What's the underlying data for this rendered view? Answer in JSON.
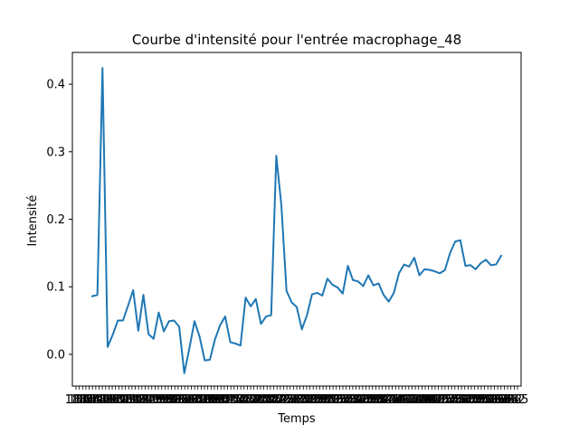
{
  "chart_data": {
    "type": "line",
    "title": "Courbe d'intensité pour l'entrée macrophage_48",
    "xlabel": "Temps",
    "ylabel": "Intensité",
    "ylim": [
      -0.047,
      0.447
    ],
    "yticks": [
      0.0,
      0.1,
      0.2,
      0.3,
      0.4
    ],
    "ytick_labels": [
      "0.0",
      "0.1",
      "0.2",
      "0.3",
      "0.4"
    ],
    "grid": false,
    "xtick_labels": [
      "188",
      "186",
      "185",
      "185",
      "184",
      "184",
      "183",
      "190",
      "189",
      "189",
      "188",
      "188",
      "187",
      "187",
      "195",
      "195",
      "194",
      "194",
      "193",
      "193",
      "192",
      "192",
      "200",
      "200",
      "199",
      "199",
      "198",
      "198",
      "197",
      "197",
      "205",
      "205",
      "204",
      "204",
      "203",
      "203",
      "202",
      "202",
      "210",
      "210",
      "209",
      "209",
      "208",
      "208",
      "207",
      "207",
      "215",
      "215",
      "214",
      "214",
      "213",
      "213",
      "212",
      "212",
      "220",
      "220",
      "219",
      "219",
      "218",
      "218",
      "217",
      "217",
      "225",
      "225",
      "224",
      "224",
      "223",
      "223",
      "222",
      "222",
      "230",
      "230",
      "229",
      "229",
      "228",
      "228",
      "227",
      "227",
      "235",
      "235",
      "234",
      "234",
      "233",
      "233",
      "232",
      "232",
      "240",
      "240",
      "239",
      "239",
      "238",
      "238",
      "237",
      "237",
      "245",
      "245",
      "244",
      "244",
      "243",
      "243",
      "242",
      "242",
      "250",
      "250",
      "249",
      "249",
      "248",
      "248",
      "247",
      "247",
      "255",
      "255",
      "254",
      "254",
      "253",
      "253",
      "252",
      "252",
      "260",
      "260",
      "259",
      "259",
      "258",
      "258",
      "257",
      "257",
      "265",
      "265",
      "264",
      "264",
      "263",
      "263",
      "262",
      "262",
      "265"
    ],
    "series": [
      {
        "color": "#1f77b4",
        "values": [
          0.086,
          0.088,
          0.424,
          0.011,
          0.029,
          0.05,
          0.05,
          0.072,
          0.095,
          0.035,
          0.088,
          0.03,
          0.023,
          0.062,
          0.034,
          0.049,
          0.05,
          0.041,
          -0.028,
          0.009,
          0.049,
          0.026,
          -0.009,
          -0.008,
          0.022,
          0.043,
          0.056,
          0.018,
          0.016,
          0.013,
          0.084,
          0.071,
          0.082,
          0.045,
          0.056,
          0.058,
          0.294,
          0.22,
          0.094,
          0.077,
          0.07,
          0.037,
          0.058,
          0.089,
          0.091,
          0.087,
          0.112,
          0.103,
          0.099,
          0.09,
          0.131,
          0.11,
          0.108,
          0.101,
          0.117,
          0.102,
          0.105,
          0.088,
          0.078,
          0.091,
          0.12,
          0.133,
          0.13,
          0.143,
          0.117,
          0.126,
          0.125,
          0.123,
          0.12,
          0.125,
          0.15,
          0.167,
          0.169,
          0.131,
          0.132,
          0.126,
          0.135,
          0.14,
          0.132,
          0.133,
          0.146
        ]
      }
    ]
  }
}
